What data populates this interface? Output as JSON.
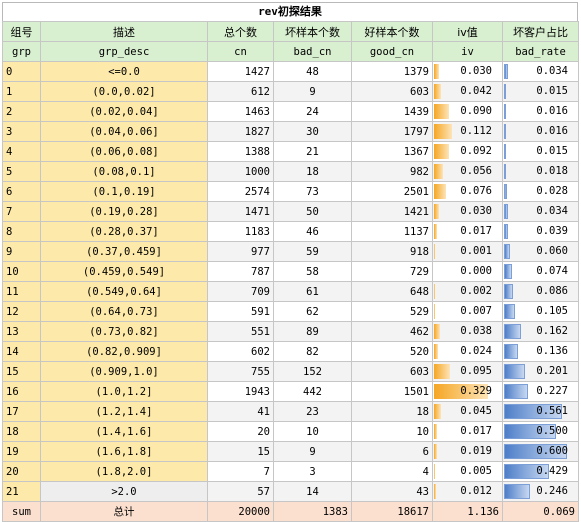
{
  "title": "rev初探结果",
  "headers_cn": [
    "组号",
    "描述",
    "总个数",
    "坏样本个数",
    "好样本个数",
    "iv值",
    "坏客户占比"
  ],
  "headers_en": [
    "grp",
    "grp_desc",
    "cn",
    "bad_cn",
    "good_cn",
    "iv",
    "bad_rate"
  ],
  "rows": [
    {
      "grp": "0",
      "desc": "<=0.0",
      "cn": "1427",
      "bad": "48",
      "good": "1379",
      "iv": "0.030",
      "br": "0.034",
      "ivf": 0.03,
      "brf": 0.034
    },
    {
      "grp": "1",
      "desc": "(0.0,0.02]",
      "cn": "612",
      "bad": "9",
      "good": "603",
      "iv": "0.042",
      "br": "0.015",
      "ivf": 0.042,
      "brf": 0.015
    },
    {
      "grp": "2",
      "desc": "(0.02,0.04]",
      "cn": "1463",
      "bad": "24",
      "good": "1439",
      "iv": "0.090",
      "br": "0.016",
      "ivf": 0.09,
      "brf": 0.016
    },
    {
      "grp": "3",
      "desc": "(0.04,0.06]",
      "cn": "1827",
      "bad": "30",
      "good": "1797",
      "iv": "0.112",
      "br": "0.016",
      "ivf": 0.112,
      "brf": 0.016
    },
    {
      "grp": "4",
      "desc": "(0.06,0.08]",
      "cn": "1388",
      "bad": "21",
      "good": "1367",
      "iv": "0.092",
      "br": "0.015",
      "ivf": 0.092,
      "brf": 0.015
    },
    {
      "grp": "5",
      "desc": "(0.08,0.1]",
      "cn": "1000",
      "bad": "18",
      "good": "982",
      "iv": "0.056",
      "br": "0.018",
      "ivf": 0.056,
      "brf": 0.018
    },
    {
      "grp": "6",
      "desc": "(0.1,0.19]",
      "cn": "2574",
      "bad": "73",
      "good": "2501",
      "iv": "0.076",
      "br": "0.028",
      "ivf": 0.076,
      "brf": 0.028
    },
    {
      "grp": "7",
      "desc": "(0.19,0.28]",
      "cn": "1471",
      "bad": "50",
      "good": "1421",
      "iv": "0.030",
      "br": "0.034",
      "ivf": 0.03,
      "brf": 0.034
    },
    {
      "grp": "8",
      "desc": "(0.28,0.37]",
      "cn": "1183",
      "bad": "46",
      "good": "1137",
      "iv": "0.017",
      "br": "0.039",
      "ivf": 0.017,
      "brf": 0.039
    },
    {
      "grp": "9",
      "desc": "(0.37,0.459]",
      "cn": "977",
      "bad": "59",
      "good": "918",
      "iv": "0.001",
      "br": "0.060",
      "ivf": 0.001,
      "brf": 0.06
    },
    {
      "grp": "10",
      "desc": "(0.459,0.549]",
      "cn": "787",
      "bad": "58",
      "good": "729",
      "iv": "0.000",
      "br": "0.074",
      "ivf": 0.0,
      "brf": 0.074
    },
    {
      "grp": "11",
      "desc": "(0.549,0.64]",
      "cn": "709",
      "bad": "61",
      "good": "648",
      "iv": "0.002",
      "br": "0.086",
      "ivf": 0.002,
      "brf": 0.086
    },
    {
      "grp": "12",
      "desc": "(0.64,0.73]",
      "cn": "591",
      "bad": "62",
      "good": "529",
      "iv": "0.007",
      "br": "0.105",
      "ivf": 0.007,
      "brf": 0.105
    },
    {
      "grp": "13",
      "desc": "(0.73,0.82]",
      "cn": "551",
      "bad": "89",
      "good": "462",
      "iv": "0.038",
      "br": "0.162",
      "ivf": 0.038,
      "brf": 0.162
    },
    {
      "grp": "14",
      "desc": "(0.82,0.909]",
      "cn": "602",
      "bad": "82",
      "good": "520",
      "iv": "0.024",
      "br": "0.136",
      "ivf": 0.024,
      "brf": 0.136
    },
    {
      "grp": "15",
      "desc": "(0.909,1.0]",
      "cn": "755",
      "bad": "152",
      "good": "603",
      "iv": "0.095",
      "br": "0.201",
      "ivf": 0.095,
      "brf": 0.201
    },
    {
      "grp": "16",
      "desc": "(1.0,1.2]",
      "cn": "1943",
      "bad": "442",
      "good": "1501",
      "iv": "0.329",
      "br": "0.227",
      "ivf": 0.329,
      "brf": 0.227
    },
    {
      "grp": "17",
      "desc": "(1.2,1.4]",
      "cn": "41",
      "bad": "23",
      "good": "18",
      "iv": "0.045",
      "br": "0.561",
      "ivf": 0.045,
      "brf": 0.561
    },
    {
      "grp": "18",
      "desc": "(1.4,1.6]",
      "cn": "20",
      "bad": "10",
      "good": "10",
      "iv": "0.017",
      "br": "0.500",
      "ivf": 0.017,
      "brf": 0.5
    },
    {
      "grp": "19",
      "desc": "(1.6,1.8]",
      "cn": "15",
      "bad": "9",
      "good": "6",
      "iv": "0.019",
      "br": "0.600",
      "ivf": 0.019,
      "brf": 0.6
    },
    {
      "grp": "20",
      "desc": "(1.8,2.0]",
      "cn": "7",
      "bad": "3",
      "good": "4",
      "iv": "0.005",
      "br": "0.429",
      "ivf": 0.005,
      "brf": 0.429
    },
    {
      "grp": "21",
      "desc": ">2.0",
      "cn": "57",
      "bad": "14",
      "good": "43",
      "iv": "0.012",
      "br": "0.246",
      "ivf": 0.012,
      "brf": 0.246
    }
  ],
  "sum": {
    "label": "sum",
    "desc": "总计",
    "cn": "20000",
    "bad": "1383",
    "good": "18617",
    "iv": "1.136",
    "br": "0.069"
  },
  "colors": {
    "header_bg": "#d8efd0",
    "grp_bg": "#fde9a9",
    "sum_bg": "#fbe0cf",
    "iv_bar": "#f5a623",
    "bad_rate_bar": "#4e7ec8"
  }
}
